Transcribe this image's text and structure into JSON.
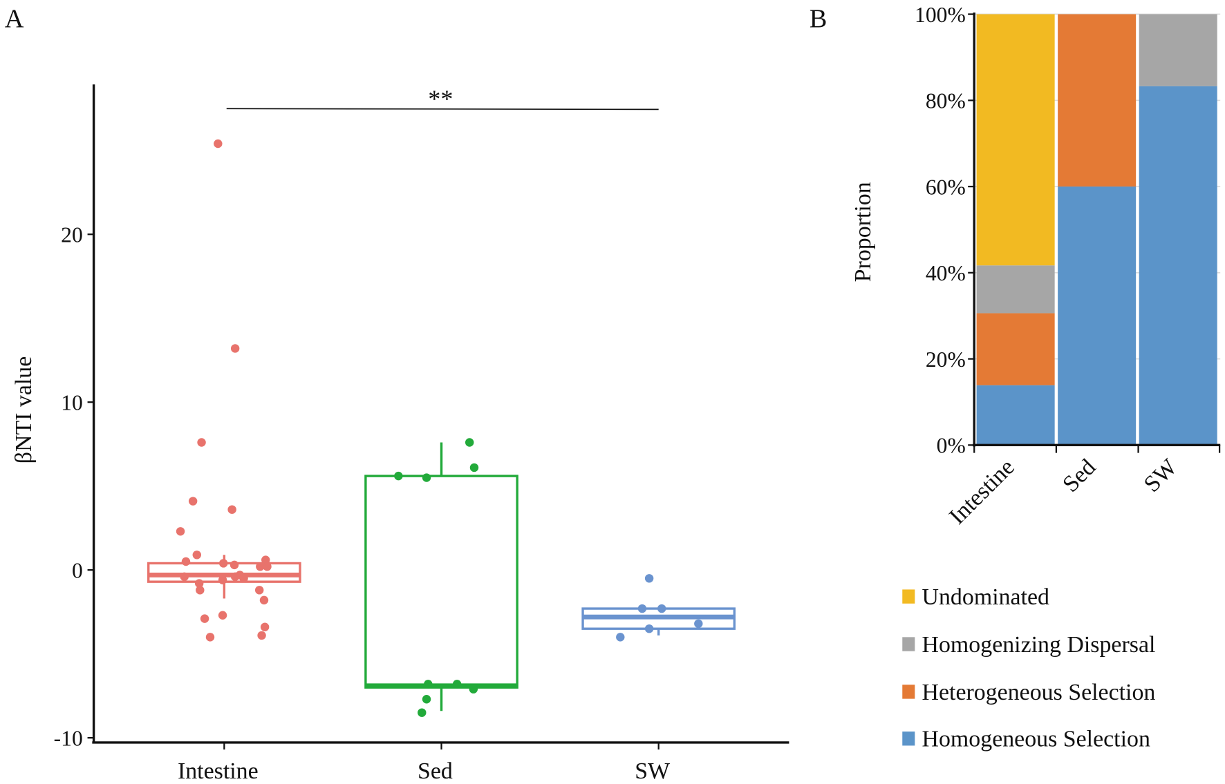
{
  "chart_data": [
    {
      "panel_label": "A",
      "type": "box",
      "ylabel": "βNTI value",
      "xlabel": "",
      "ylim": [
        -10,
        28
      ],
      "yticks": [
        -10,
        0,
        10,
        20
      ],
      "categories": [
        "Intestine",
        "Sed",
        "SW"
      ],
      "significance": {
        "from": "Intestine",
        "to": "SW",
        "label": "**"
      },
      "series": [
        {
          "name": "Intestine",
          "color": "#E8736C",
          "box": {
            "q1": -0.7,
            "median": -0.3,
            "q3": 0.4,
            "whisker_low": -1.7,
            "whisker_high": 0.9
          },
          "points": [
            25.4,
            13.2,
            7.6,
            4.1,
            3.6,
            2.3,
            0.9,
            0.5,
            0.4,
            0.3,
            0.6,
            0.2,
            0.2,
            -0.4,
            -0.8,
            -1.2,
            -0.6,
            -0.4,
            -0.3,
            -0.5,
            -1.2,
            -1.8,
            -2.9,
            -2.7,
            -3.4,
            -4.0,
            -3.9
          ],
          "jitter": [
            -8,
            14,
            -29,
            -40,
            10,
            -56,
            -35,
            -49,
            -1,
            13,
            53,
            46,
            55,
            -51,
            -32,
            -31,
            -2,
            14,
            20,
            25,
            45,
            51,
            -25,
            -2,
            52,
            -18,
            48
          ]
        },
        {
          "name": "Sed",
          "color": "#22AA3A",
          "box": {
            "q1": -7.0,
            "median": -6.9,
            "q3": 5.6,
            "whisker_low": -8.4,
            "whisker_high": 7.6
          },
          "points": [
            5.6,
            5.5,
            7.6,
            6.1,
            -6.8,
            -6.8,
            -7.1,
            -7.7,
            -8.5
          ],
          "jitter": [
            -55,
            -19,
            36,
            42,
            -17,
            20,
            41,
            -19,
            -25
          ]
        },
        {
          "name": "SW",
          "color": "#6A93CF",
          "box": {
            "q1": -3.5,
            "median": -2.8,
            "q3": -2.3,
            "whisker_low": -3.9,
            "whisker_high": -2.3
          },
          "points": [
            -0.5,
            -2.3,
            -2.3,
            -3.2,
            -3.5,
            -4.0
          ],
          "jitter": [
            -12,
            -21,
            4,
            51,
            -12,
            -49
          ]
        }
      ]
    },
    {
      "panel_label": "B",
      "type": "stacked_bar",
      "ylabel": "Proportion",
      "ylim": [
        0,
        100
      ],
      "yticks": [
        "0%",
        "20%",
        "40%",
        "60%",
        "80%",
        "100%"
      ],
      "categories": [
        "Intestine",
        "Sed",
        "SW"
      ],
      "legend_position": "bottom",
      "series": [
        {
          "name": "Homogeneous Selection",
          "color": "#5B94C9",
          "values": [
            13.9,
            60.0,
            83.3
          ]
        },
        {
          "name": "Heterogeneous Selection",
          "color": "#E47A35",
          "values": [
            16.7,
            40.0,
            0
          ]
        },
        {
          "name": "Homogenizing Dispersal",
          "color": "#A6A6A6",
          "values": [
            11.1,
            0,
            16.7
          ]
        },
        {
          "name": "Undominated",
          "color": "#F2BA22",
          "values": [
            58.3,
            0,
            0
          ]
        }
      ],
      "legend_order": [
        "Undominated",
        "Homogenizing Dispersal",
        "Heterogeneous Selection",
        "Homogeneous Selection"
      ]
    }
  ]
}
